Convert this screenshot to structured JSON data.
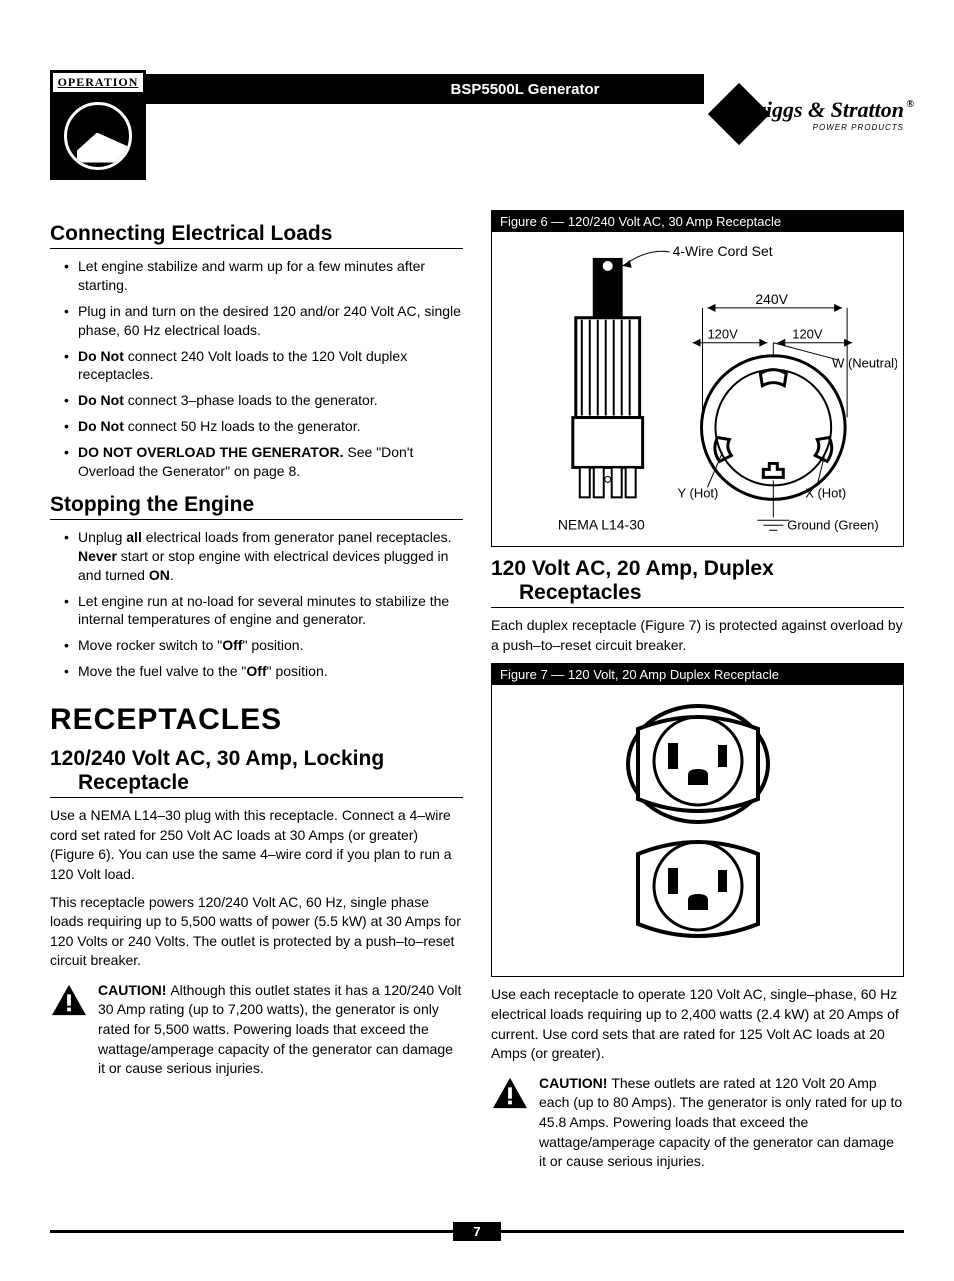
{
  "header": {
    "operation_label": "OPERATION",
    "title": "BSP5500L Generator",
    "logo_name": "Briggs & Stratton",
    "logo_sub": "POWER PRODUCTS"
  },
  "left": {
    "h_connecting": "Connecting Electrical Loads",
    "connecting_items": [
      {
        "pre": "",
        "text": "Let engine stabilize and warm up for a few minutes after starting."
      },
      {
        "pre": "",
        "text": "Plug in and turn on the desired 120 and/or 240 Volt AC, single phase, 60 Hz electrical loads."
      },
      {
        "pre": "Do Not ",
        "text": "connect 240 Volt loads to the 120 Volt duplex receptacles."
      },
      {
        "pre": "Do Not ",
        "text": "connect 3–phase loads to the generator."
      },
      {
        "pre": "Do Not ",
        "text": "connect 50 Hz loads to the generator."
      },
      {
        "pre": "DO NOT OVERLOAD THE GENERATOR. ",
        "text": "See \"Don't Overload the Generator\" on page 8."
      }
    ],
    "h_stopping": "Stopping the Engine",
    "stop1_a": "Unplug ",
    "stop1_b": "all",
    "stop1_c": " electrical loads from generator panel receptacles. ",
    "stop1_d": "Never",
    "stop1_e": " start or stop engine with electrical devices plugged in and turned ",
    "stop1_f": "ON",
    "stop1_g": ".",
    "stop2": "Let engine run at no-load for several minutes to stabilize the internal temperatures of engine and generator.",
    "stop3_a": "Move rocker switch to \"",
    "stop3_b": "Off",
    "stop3_c": "\" position.",
    "stop4_a": "Move the fuel valve to the \"",
    "stop4_b": "Off",
    "stop4_c": "\" position.",
    "h_receptacles": "RECEPTACLES",
    "h_locking_l1": "120/240 Volt AC, 30 Amp, Locking",
    "h_locking_l2": "Receptacle",
    "lock_p1": "Use a NEMA L14–30 plug with this receptacle. Connect a 4–wire cord set rated for 250 Volt AC loads at 30 Amps (or greater) (Figure 6). You can use the same 4–wire cord if you plan to run a 120 Volt load.",
    "lock_p2": "This receptacle powers 120/240 Volt AC, 60 Hz, single phase loads requiring up to 5,500 watts of power (5.5 kW) at 30 Amps for 120 Volts or 240 Volts. The outlet is protected by a push–to–reset circuit breaker.",
    "caution1_bold": "CAUTION! ",
    "caution1_text": "Although this outlet states it has a 120/240 Volt 30 Amp rating (up to 7,200 watts), the generator is only rated for 5,500 watts. Powering loads that exceed the wattage/amperage capacity of the generator can damage it or cause serious injuries."
  },
  "right": {
    "fig6_caption": "Figure 6 — 120/240 Volt AC, 30 Amp Receptacle",
    "fig6": {
      "cord": "4-Wire Cord Set",
      "v240": "240V",
      "v120a": "120V",
      "v120b": "120V",
      "w": "W (Neutral)",
      "y": "Y (Hot)",
      "x": "X (Hot)",
      "nema": "NEMA L14-30",
      "ground": "Ground (Green)"
    },
    "h_duplex_l1": "120 Volt AC, 20 Amp, Duplex",
    "h_duplex_l2": "Receptacles",
    "duplex_p1": "Each duplex receptacle (Figure 7) is protected against overload by a push–to–reset circuit breaker.",
    "fig7_caption": "Figure 7 — 120 Volt, 20 Amp Duplex Receptacle",
    "duplex_p2": "Use each receptacle to operate 120 Volt AC, single–phase, 60 Hz electrical loads requiring up to 2,400 watts (2.4 kW) at 20 Amps of current. Use cord sets that are rated for 125 Volt AC loads at 20 Amps (or greater).",
    "caution2_bold": "CAUTION! ",
    "caution2_text": "These outlets are rated at 120 Volt 20 Amp each (up to 80 Amps). The generator is only rated for up to 45.8 Amps. Powering loads that exceed the wattage/amperage capacity of the generator can damage it or cause serious injuries."
  },
  "page_number": "7"
}
